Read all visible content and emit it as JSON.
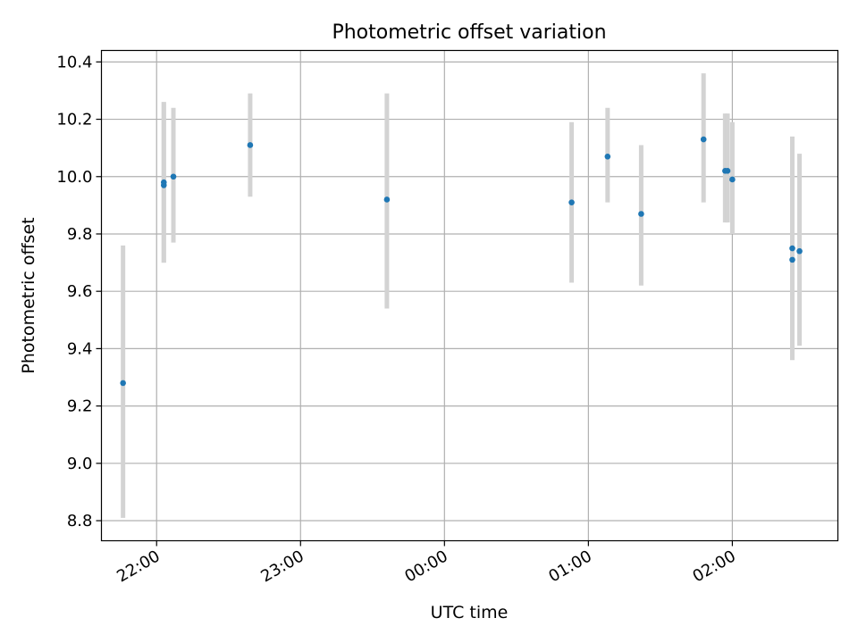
{
  "chart_data": {
    "type": "scatter",
    "title": "Photometric offset variation",
    "xlabel": "UTC time",
    "ylabel": "Photometric offset",
    "ylim": [
      8.73,
      10.44
    ],
    "xlim": [
      "21:37",
      "02:44"
    ],
    "x_ticks": [
      "22:00",
      "23:00",
      "00:00",
      "01:00",
      "02:00"
    ],
    "y_ticks": [
      8.8,
      9.0,
      9.2,
      9.4,
      9.6,
      9.8,
      10.0,
      10.2,
      10.4
    ],
    "y_tick_labels": [
      "8.8",
      "9.0",
      "9.2",
      "9.4",
      "9.6",
      "9.8",
      "10.0",
      "10.2",
      "10.4"
    ],
    "grid": true,
    "series": [
      {
        "x": [
          "21:46",
          "22:03",
          "22:03",
          "22:07",
          "22:39",
          "23:36",
          "00:53",
          "01:08",
          "01:22",
          "01:48",
          "01:57",
          "01:58",
          "02:00",
          "02:25",
          "02:25",
          "02:28"
        ],
        "y": [
          9.28,
          9.97,
          9.98,
          10.0,
          10.11,
          9.92,
          9.91,
          10.07,
          9.87,
          10.13,
          10.02,
          10.02,
          9.99,
          9.75,
          9.71,
          9.74
        ],
        "y_low": [
          8.81,
          9.7,
          9.7,
          9.77,
          9.93,
          9.54,
          9.63,
          9.91,
          9.62,
          9.91,
          9.84,
          9.84,
          9.8,
          9.36,
          9.44,
          9.41
        ],
        "y_high": [
          9.76,
          10.26,
          10.26,
          10.24,
          10.29,
          10.29,
          10.19,
          10.24,
          10.11,
          10.36,
          10.22,
          10.22,
          10.19,
          10.14,
          9.98,
          10.08
        ]
      }
    ],
    "colors": {
      "point": "#1f77b4",
      "errorbar": "#d3d3d3",
      "grid": "#b0b0b0",
      "axes": "#000000"
    }
  }
}
